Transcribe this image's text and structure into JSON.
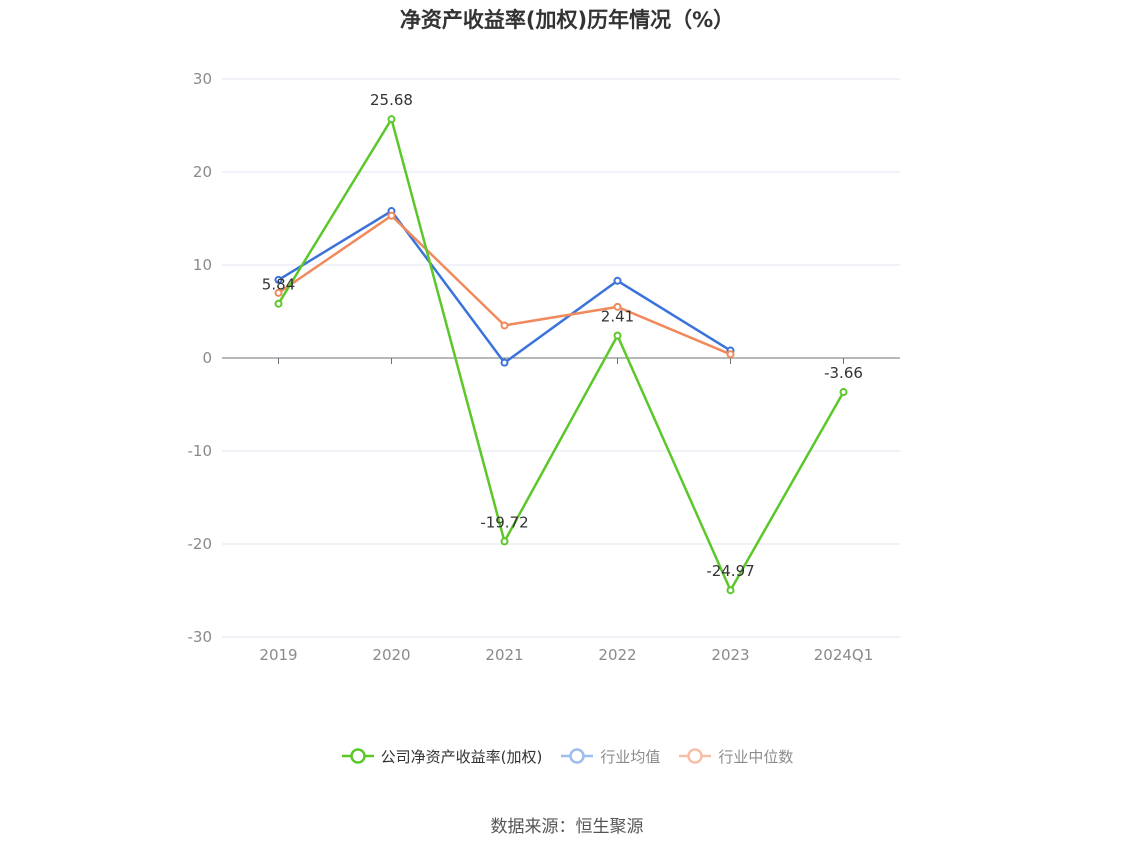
{
  "title": "净资产收益率(加权)历年情况（%）",
  "source_label": "数据来源：恒生聚源",
  "chart_data": {
    "type": "line",
    "title": "净资产收益率(加权)历年情况（%）",
    "categories": [
      "2019",
      "2020",
      "2021",
      "2022",
      "2023",
      "2024Q1"
    ],
    "ylim": [
      -30,
      30
    ],
    "yticks": [
      30,
      20,
      10,
      0,
      -10,
      -20,
      -30
    ],
    "grid": true,
    "legend_position": "bottom",
    "series": [
      {
        "name": "公司净资产收益率(加权)",
        "color": "#5cc72a",
        "values": [
          5.84,
          25.68,
          -19.72,
          2.41,
          -24.97,
          -3.66
        ],
        "labels": [
          "5.84",
          "25.68",
          "-19.72",
          "2.41",
          "-24.97",
          "-3.66"
        ],
        "show_labels": true
      },
      {
        "name": "行业均值",
        "color": "#3b73db",
        "values": [
          8.4,
          15.8,
          -0.5,
          8.3,
          0.8,
          null
        ],
        "show_labels": false
      },
      {
        "name": "行业中位数",
        "color": "#f08a5d",
        "values": [
          7.0,
          15.3,
          3.5,
          5.5,
          0.4,
          null
        ],
        "show_labels": false
      }
    ]
  },
  "legend": {
    "items": [
      {
        "label": "公司净资产收益率(加权)",
        "color": "#5cc72a",
        "active": true
      },
      {
        "label": "行业均值",
        "color": "#9dbcf0",
        "active": false
      },
      {
        "label": "行业中位数",
        "color": "#f7bfa6",
        "active": false
      }
    ]
  }
}
